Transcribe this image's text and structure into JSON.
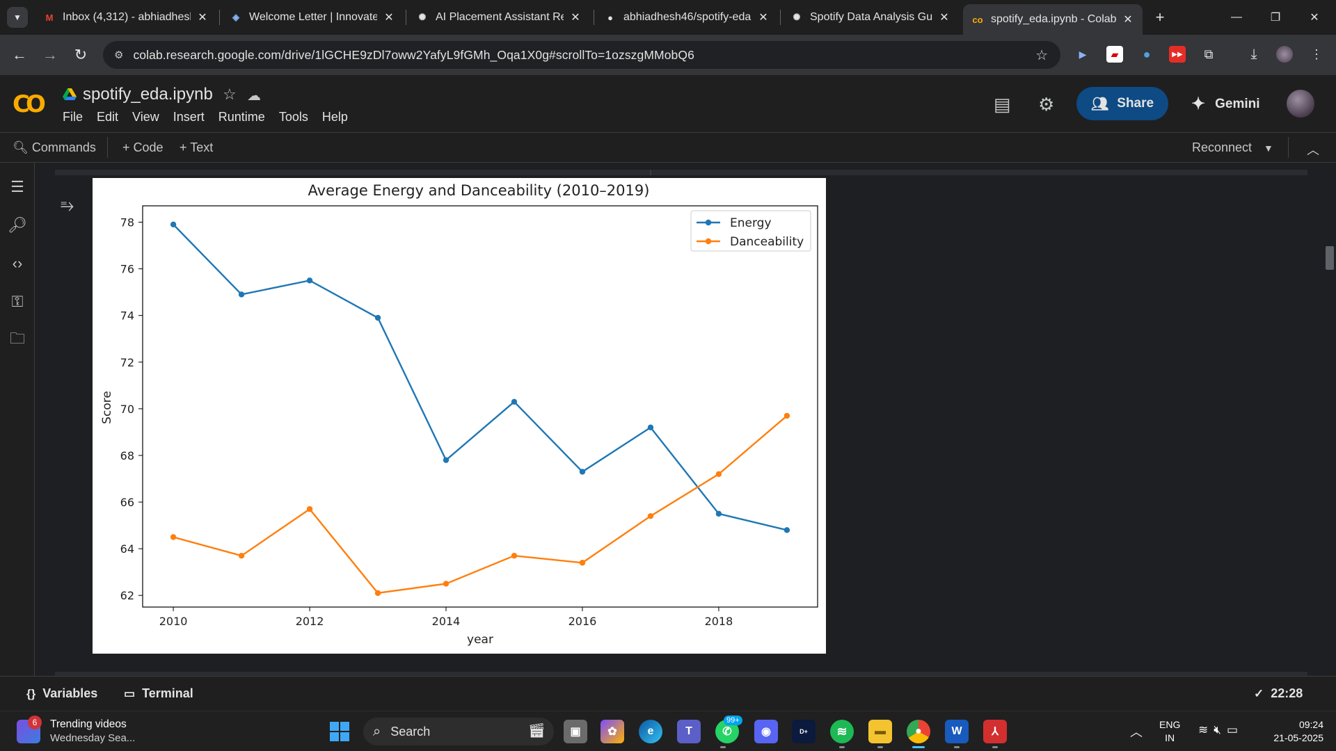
{
  "browser": {
    "tabs": [
      {
        "title": "Inbox (4,312) - abhiadhesh",
        "favicon": "gmail-icon",
        "favicon_glyph": "M",
        "favicon_color": "#ea4335"
      },
      {
        "title": "Welcome Letter | Innovate",
        "favicon": "doc-icon",
        "favicon_glyph": "◈",
        "favicon_color": "#8ab4f8"
      },
      {
        "title": "AI Placement Assistant Rep",
        "favicon": "chatgpt-icon",
        "favicon_glyph": "✺",
        "favicon_color": "#e3e3e3"
      },
      {
        "title": "abhiadhesh46/spotify-eda",
        "favicon": "github-icon",
        "favicon_glyph": "●",
        "favicon_color": "#e3e3e3"
      },
      {
        "title": "Spotify Data Analysis Guide",
        "favicon": "chatgpt-icon",
        "favicon_glyph": "✺",
        "favicon_color": "#e3e3e3"
      },
      {
        "title": "spotify_eda.ipynb - Colab",
        "favicon": "colab-icon",
        "favicon_glyph": "co",
        "favicon_color": "#f9ab00",
        "active": true
      }
    ],
    "new_tab": "+",
    "url": "colab.research.google.com/drive/1lGCHE9zDl7oww2YafyL9fGMh_Oqa1X0g#scrollTo=1ozszgMMobQ6"
  },
  "colab": {
    "logo": "CO",
    "notebook_title": "spotify_eda.ipynb",
    "menu": [
      "File",
      "Edit",
      "View",
      "Insert",
      "Runtime",
      "Tools",
      "Help"
    ],
    "share_label": "Share",
    "gemini_label": "Gemini",
    "toolbar": {
      "commands": "Commands",
      "code": "+ Code",
      "text": "+ Text",
      "reconnect": "Reconnect"
    },
    "statusbar": {
      "variables": "Variables",
      "terminal": "Terminal",
      "exec_time": "22:28"
    }
  },
  "chart_data": {
    "type": "line",
    "title": "Average Energy and Danceability (2010–2019)",
    "xlabel": "year",
    "ylabel": "Score",
    "x": [
      2010,
      2011,
      2012,
      2013,
      2014,
      2015,
      2016,
      2017,
      2018,
      2019
    ],
    "xlim": [
      2009.55,
      2019.45
    ],
    "ylim": [
      61.5,
      78.7
    ],
    "xticks": [
      2010,
      2012,
      2014,
      2016,
      2018
    ],
    "yticks": [
      62,
      64,
      66,
      68,
      70,
      72,
      74,
      76,
      78
    ],
    "grid": false,
    "legend": "top-right",
    "series": [
      {
        "name": "Energy",
        "color": "#1f77b4",
        "values": [
          77.9,
          74.9,
          75.5,
          73.9,
          67.8,
          70.3,
          67.3,
          69.2,
          65.5,
          64.8
        ]
      },
      {
        "name": "Danceability",
        "color": "#ff7f0e",
        "values": [
          64.5,
          63.7,
          65.7,
          62.1,
          62.5,
          63.7,
          63.4,
          65.4,
          67.2,
          69.7
        ]
      }
    ]
  },
  "taskbar": {
    "widget_title": "Trending videos",
    "widget_sub": "Wednesday Sea...",
    "widget_badge": "6",
    "search_label": "Search",
    "teams_badge": "99+",
    "lang_top": "ENG",
    "lang_bottom": "IN",
    "time": "09:24",
    "date": "21-05-2025"
  }
}
